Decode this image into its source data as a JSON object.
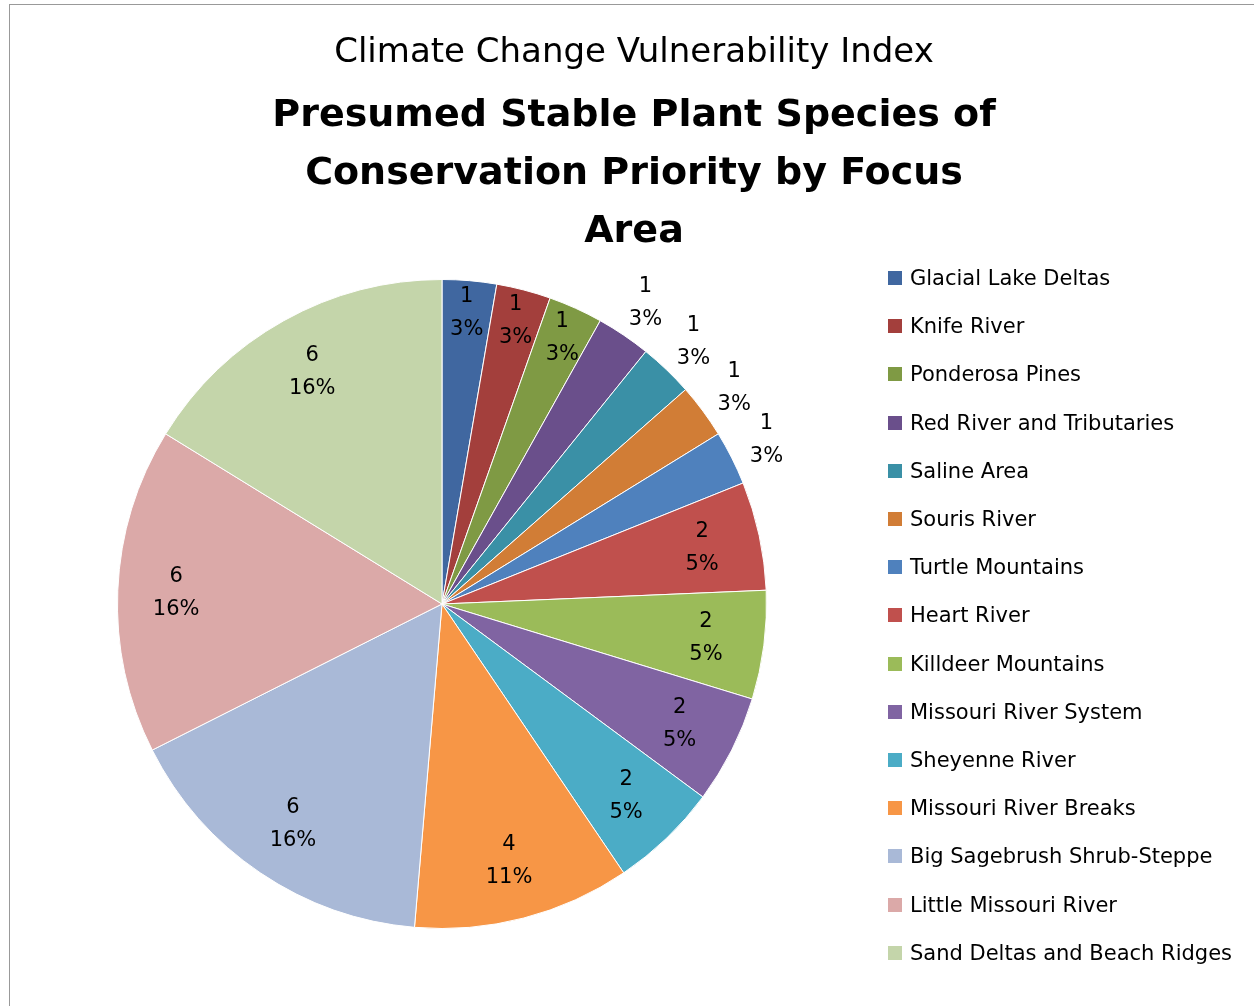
{
  "chart_data": {
    "type": "pie",
    "title": "Climate Change Vulnerability Index",
    "subtitle": "Presumed Stable Plant Species of Conservation Priority by Focus Area",
    "categories": [
      "Glacial Lake Deltas",
      "Knife River",
      "Ponderosa Pines",
      "Red River and Tributaries",
      "Saline Area",
      "Souris River",
      "Turtle Mountains",
      "Heart River",
      "Killdeer Mountains",
      "Missouri River System",
      "Sheyenne River",
      "Missouri River Breaks",
      "Big Sagebrush Shrub-Steppe",
      "Little Missouri River",
      "Sand Deltas and Beach Ridges"
    ],
    "values": [
      1,
      1,
      1,
      1,
      1,
      1,
      1,
      2,
      2,
      2,
      2,
      4,
      6,
      6,
      6
    ],
    "value_labels": [
      "1\n3%",
      "1\n3%",
      "1\n3%",
      "1\n3%",
      "1\n3%",
      "1\n3%",
      "1\n3%",
      "2\n5%",
      "2\n5%",
      "2\n5%",
      "2\n5%",
      "4\n11%",
      "6\n16%",
      "6\n16%",
      "6\n16%"
    ],
    "colors": [
      "#4067a0",
      "#a33f3c",
      "#7f9a44",
      "#6a4f8b",
      "#3a90a6",
      "#d17d36",
      "#4f81bd",
      "#c0504d",
      "#9bbb59",
      "#8064a2",
      "#4bacc6",
      "#f79646",
      "#a9b9d7",
      "#dba9a8",
      "#c4d5aa"
    ],
    "legend": "right"
  }
}
